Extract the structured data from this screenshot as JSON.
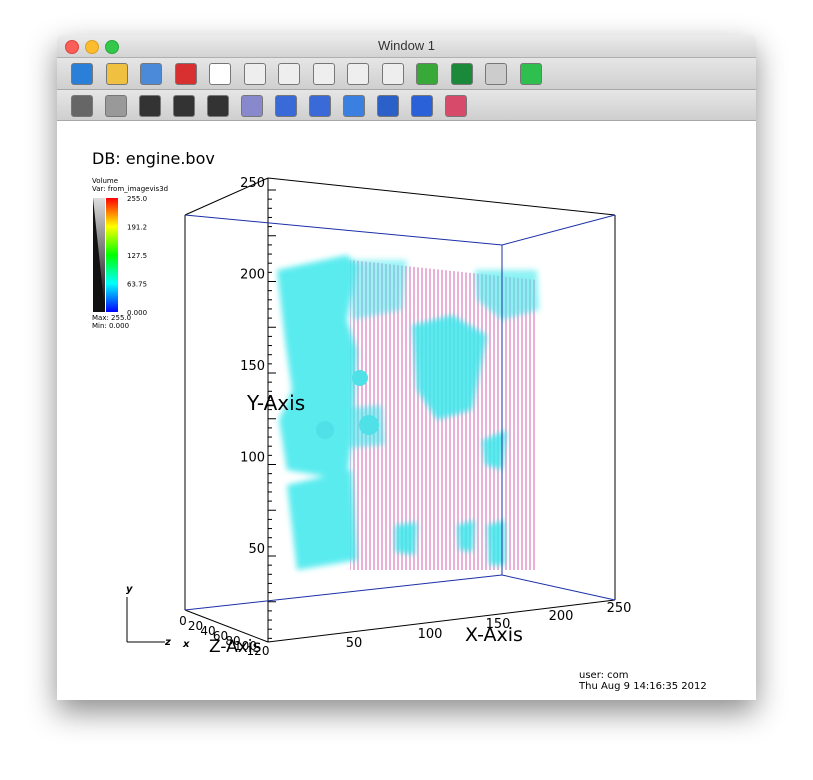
{
  "window": {
    "title": "Window 1"
  },
  "plot": {
    "database": "DB: engine.bov",
    "legend": {
      "plot_type": "Volume",
      "variable": "Var: from_imagevis3d",
      "ticks": [
        "255.0",
        "191.2",
        "127.5",
        "63.75",
        "0.000"
      ],
      "max": "Max: 255.0",
      "min": "Min: 0.000"
    },
    "y_axis": {
      "label": "Y-Axis",
      "ticks": [
        "250",
        "200",
        "150",
        "100",
        "50"
      ]
    },
    "x_axis": {
      "label": "X-Axis",
      "ticks": [
        "50",
        "100",
        "150",
        "200",
        "250"
      ]
    },
    "z_axis": {
      "label": "Z-Axis",
      "ticks": [
        "0",
        "20",
        "40",
        "60",
        "80",
        "100",
        "120"
      ]
    },
    "triad": {
      "y": "y",
      "z": "z",
      "x": "x"
    },
    "user": "user: com",
    "timestamp": "Thu Aug  9 14:16:35 2012"
  }
}
